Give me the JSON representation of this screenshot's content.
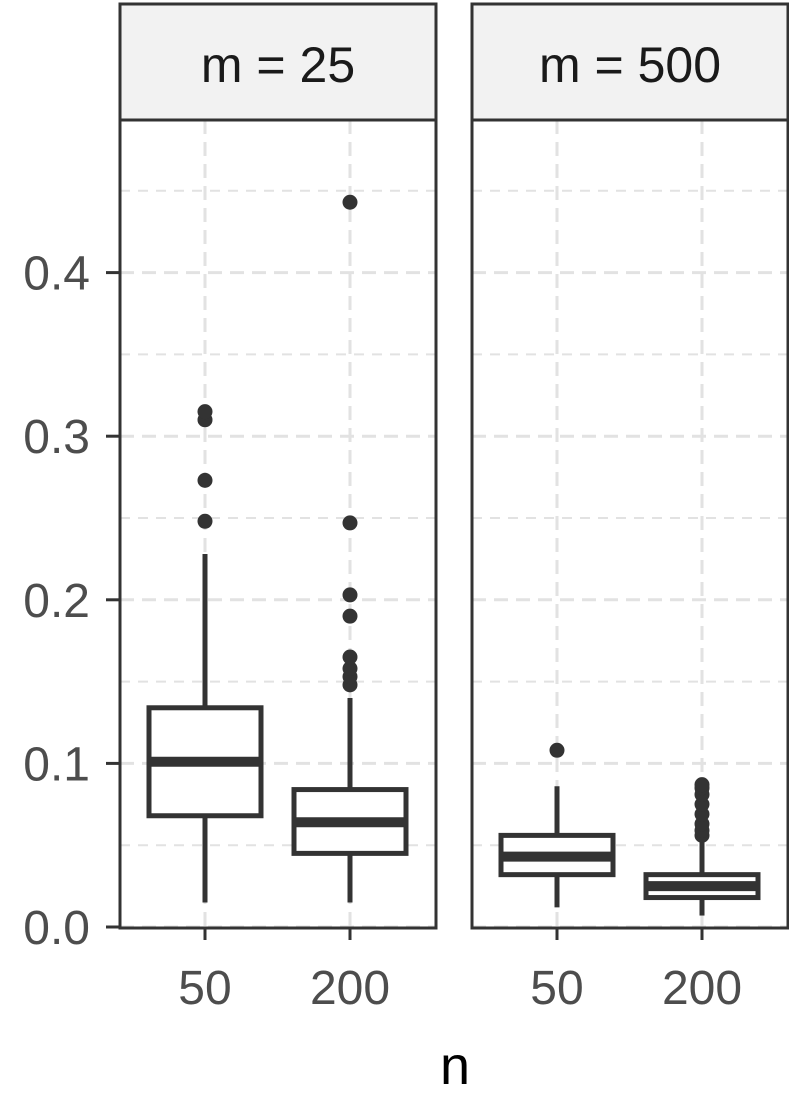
{
  "chart_data": {
    "type": "boxplot",
    "xlabel": "n",
    "ylabel": "",
    "ylim": [
      0,
      0.49
    ],
    "yticks": [
      0.0,
      0.1,
      0.2,
      0.3,
      0.4
    ],
    "ytick_labels": [
      "0.0",
      "0.1",
      "0.2",
      "0.3",
      "0.4"
    ],
    "categories": [
      "50",
      "200"
    ],
    "grid": true,
    "facets": [
      {
        "label": "m = 25",
        "boxes": [
          {
            "x": "50",
            "whisker_low": 0.015,
            "q1": 0.068,
            "median": 0.101,
            "q3": 0.134,
            "whisker_high": 0.228,
            "outliers": [
              0.248,
              0.273,
              0.31,
              0.315
            ]
          },
          {
            "x": "200",
            "whisker_low": 0.015,
            "q1": 0.045,
            "median": 0.064,
            "q3": 0.084,
            "whisker_high": 0.14,
            "outliers": [
              0.148,
              0.153,
              0.158,
              0.165,
              0.19,
              0.203,
              0.247,
              0.443
            ]
          }
        ]
      },
      {
        "label": "m = 500",
        "boxes": [
          {
            "x": "50",
            "whisker_low": 0.012,
            "q1": 0.032,
            "median": 0.043,
            "q3": 0.056,
            "whisker_high": 0.086,
            "outliers": [
              0.108
            ]
          },
          {
            "x": "200",
            "whisker_low": 0.007,
            "q1": 0.018,
            "median": 0.025,
            "q3": 0.032,
            "whisker_high": 0.052,
            "outliers": [
              0.056,
              0.059,
              0.063,
              0.069,
              0.075,
              0.081,
              0.085,
              0.087
            ]
          }
        ]
      }
    ]
  }
}
